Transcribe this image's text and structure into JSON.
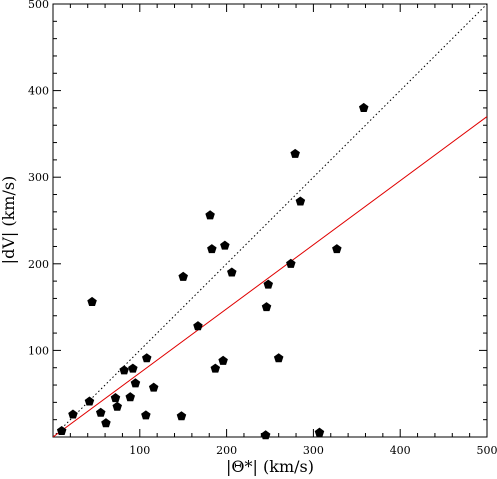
{
  "chart_data": {
    "type": "scatter",
    "xlabel": "|Θ*| (km/s)",
    "ylabel": "|dV| (km/s)",
    "xlim": [
      0,
      500
    ],
    "ylim": [
      0,
      500
    ],
    "xticks": [
      100,
      200,
      300,
      400,
      500
    ],
    "yticks": [
      100,
      200,
      300,
      400,
      500
    ],
    "marker": "pentagon",
    "grid": false,
    "colors": {
      "points": "#000000",
      "fit_line": "#e00000",
      "identity_line": "#000000"
    },
    "lines": [
      {
        "style": "dotted",
        "color": "#000000",
        "x": [
          0,
          500
        ],
        "y": [
          0,
          500
        ]
      },
      {
        "style": "solid",
        "color": "#e00000",
        "x": [
          0,
          500
        ],
        "y": [
          0,
          370
        ]
      }
    ],
    "points": [
      [
        10,
        7
      ],
      [
        23,
        26
      ],
      [
        42,
        41
      ],
      [
        45,
        156
      ],
      [
        55,
        28
      ],
      [
        61,
        16
      ],
      [
        72,
        45
      ],
      [
        74,
        35
      ],
      [
        82,
        77
      ],
      [
        89,
        46
      ],
      [
        92,
        79
      ],
      [
        95,
        62
      ],
      [
        107,
        25
      ],
      [
        108,
        91
      ],
      [
        116,
        57
      ],
      [
        148,
        24
      ],
      [
        150,
        185
      ],
      [
        167,
        128
      ],
      [
        181,
        256
      ],
      [
        183,
        217
      ],
      [
        187,
        79
      ],
      [
        196,
        88
      ],
      [
        198,
        221
      ],
      [
        206,
        190
      ],
      [
        245,
        2
      ],
      [
        246,
        150
      ],
      [
        248,
        176
      ],
      [
        260,
        91
      ],
      [
        274,
        200
      ],
      [
        279,
        327
      ],
      [
        285,
        272
      ],
      [
        307,
        5
      ],
      [
        327,
        217
      ],
      [
        358,
        380
      ]
    ]
  }
}
